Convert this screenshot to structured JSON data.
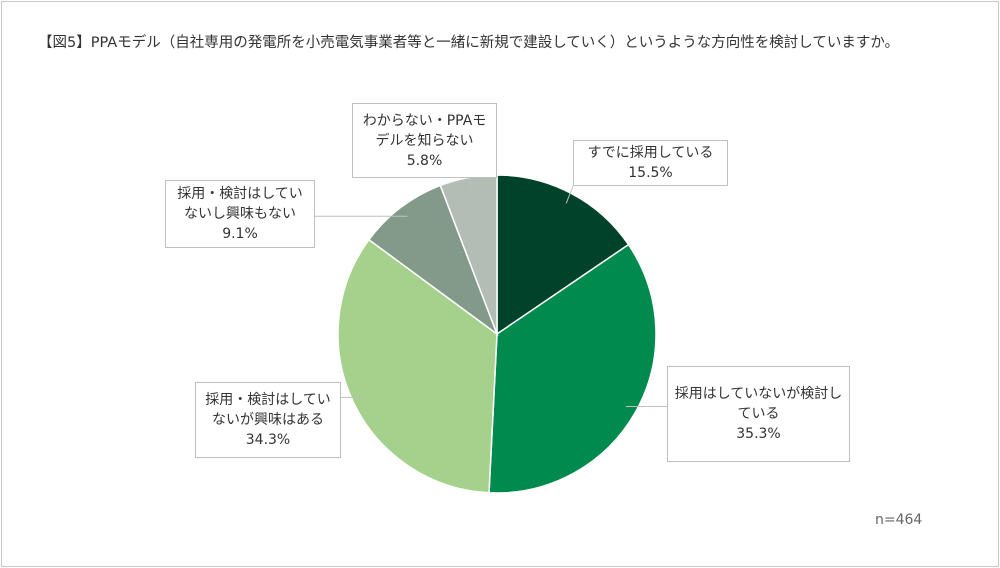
{
  "chart_data": {
    "type": "pie",
    "title": "【図5】PPAモデル（自社専用の発電所を小売電気事業者等と一緒に新規で建設していく）というような方向性を検討していますか。",
    "categories": [
      "すでに採用している",
      "採用はしていないが検討している",
      "採用・検討はしていないが興味はある",
      "採用・検討はしていないし興味もない",
      "わからない・PPAモデルを知らない"
    ],
    "values": [
      15.5,
      35.3,
      34.3,
      9.1,
      5.8
    ],
    "value_labels": [
      "15.5%",
      "35.3%",
      "34.3%",
      "9.1%",
      "5.8%"
    ],
    "colors": [
      "#00432a",
      "#008a4e",
      "#a6d18d",
      "#839a8a",
      "#b3bdb6"
    ],
    "note": "n=464"
  }
}
